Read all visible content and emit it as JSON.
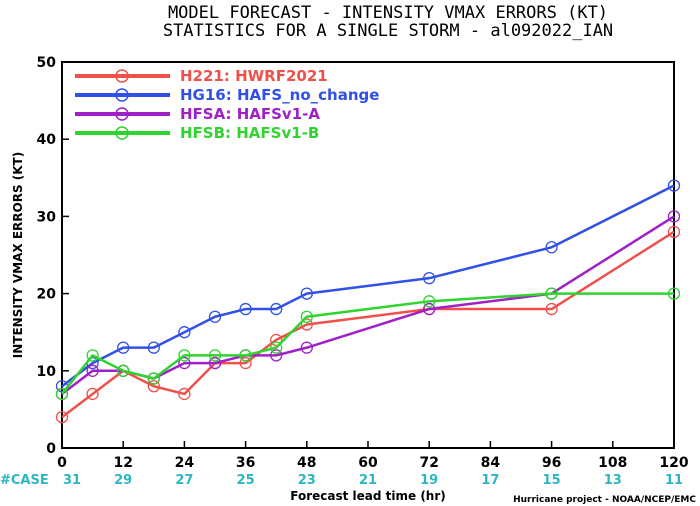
{
  "chart_data": {
    "type": "line",
    "title_line1": "MODEL FORECAST - INTENSITY VMAX ERRORS (KT)",
    "title_line2": "STATISTICS FOR A SINGLE STORM - al092022_IAN",
    "ylabel": "INTENSITY VMAX ERRORS (KT)",
    "xlabel": "Forecast lead time (hr)",
    "credit": "Hurricane project - NOAA/NCEP/EMC",
    "ylim": [
      0,
      50
    ],
    "xlim": [
      0,
      120
    ],
    "xticks": [
      "0",
      "12",
      "24",
      "36",
      "48",
      "60",
      "72",
      "84",
      "96",
      "108",
      "120"
    ],
    "yticks": [
      "0",
      "10",
      "20",
      "30",
      "40",
      "50"
    ],
    "case_label": "#CASE",
    "case_x": [
      0,
      12,
      24,
      36,
      48,
      60,
      72,
      84,
      96,
      108,
      120
    ],
    "case_counts": [
      "31",
      "29",
      "27",
      "25",
      "23",
      "21",
      "19",
      "17",
      "15",
      "13",
      "11"
    ],
    "legend_position": "top-left",
    "series": [
      {
        "name": "H221: HWRF2021",
        "color": "#f0504a",
        "x": [
          0,
          6,
          12,
          18,
          24,
          30,
          36,
          42,
          48,
          72,
          96,
          120
        ],
        "values": [
          4,
          7,
          10,
          8,
          7,
          11,
          11,
          14,
          16,
          18,
          18,
          28
        ]
      },
      {
        "name": "HG16: HAFS_no_change",
        "color": "#3050e6",
        "x": [
          0,
          6,
          12,
          18,
          24,
          30,
          36,
          42,
          48,
          72,
          96,
          120
        ],
        "values": [
          8,
          11,
          13,
          13,
          15,
          17,
          18,
          18,
          20,
          22,
          26,
          34
        ]
      },
      {
        "name": "HFSA: HAFSv1-A",
        "color": "#a020c8",
        "x": [
          0,
          6,
          12,
          18,
          24,
          30,
          36,
          42,
          48,
          72,
          96,
          120
        ],
        "values": [
          7,
          10,
          10,
          9,
          11,
          11,
          12,
          12,
          13,
          18,
          20,
          30
        ]
      },
      {
        "name": "HFSB: HAFSv1-B",
        "color": "#2fd42f",
        "x": [
          0,
          6,
          12,
          18,
          24,
          30,
          36,
          42,
          48,
          72,
          96,
          120
        ],
        "values": [
          7,
          12,
          10,
          9,
          12,
          12,
          12,
          13,
          17,
          19,
          20,
          20
        ]
      }
    ]
  }
}
